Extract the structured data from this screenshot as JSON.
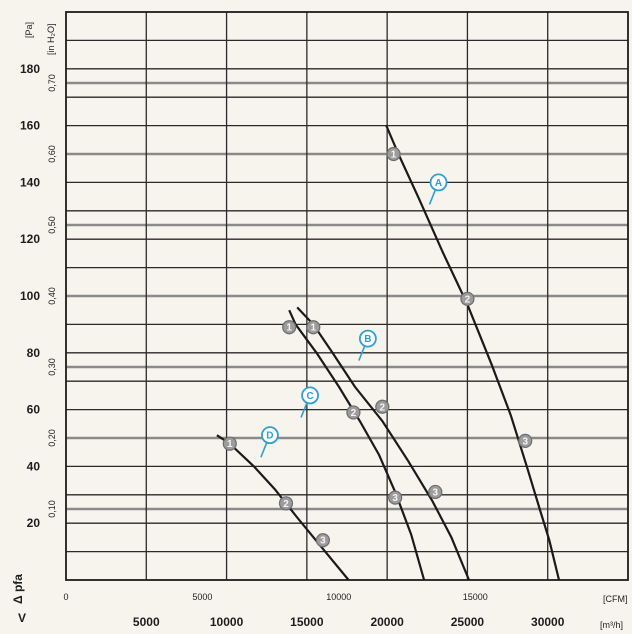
{
  "chart_data": {
    "type": "line",
    "x": {
      "label": "V",
      "unit": "[m³/h]",
      "lim": [
        0,
        35000
      ],
      "ticks": [
        5000,
        10000,
        15000,
        20000,
        25000,
        30000
      ]
    },
    "x_secondary": {
      "unit": "[CFM]",
      "ticks": [
        {
          "label": "0",
          "value": 0
        },
        {
          "label": "5000",
          "value": 5000
        },
        {
          "label": "10000",
          "value": 10000
        },
        {
          "label": "15000",
          "value": 15000
        }
      ]
    },
    "y": {
      "label": "Δ pfa",
      "unit": "[Pa]",
      "lim": [
        0,
        200
      ],
      "ticks": [
        20,
        40,
        60,
        80,
        100,
        120,
        140,
        160,
        180
      ]
    },
    "y_secondary": {
      "unit": "[in H₂O]",
      "ticks": [
        {
          "label": "0,10",
          "value": 25
        },
        {
          "label": "0,20",
          "value": 50
        },
        {
          "label": "0,30",
          "value": 75
        },
        {
          "label": "0,40",
          "value": 100
        },
        {
          "label": "0,50",
          "value": 125
        },
        {
          "label": "0,60",
          "value": 150
        },
        {
          "label": "0,70",
          "value": 175
        }
      ]
    },
    "series": [
      {
        "name": "A",
        "curve": [
          [
            19950,
            160
          ],
          [
            20700,
            150
          ],
          [
            22000,
            134
          ],
          [
            23500,
            115
          ],
          [
            25000,
            97
          ],
          [
            26500,
            76
          ],
          [
            27700,
            58
          ],
          [
            28700,
            40
          ],
          [
            29500,
            25
          ],
          [
            30100,
            14
          ],
          [
            30700,
            0
          ]
        ],
        "points": [
          {
            "label": "1",
            "x": 20400,
            "y": 150
          },
          {
            "label": "2",
            "x": 25000,
            "y": 99
          },
          {
            "label": "3",
            "x": 28600,
            "y": 49
          }
        ],
        "tag": {
          "x": 23200,
          "y": 140
        }
      },
      {
        "name": "B",
        "curve": [
          [
            14400,
            96
          ],
          [
            15400,
            90
          ],
          [
            16600,
            80
          ],
          [
            18000,
            68
          ],
          [
            19700,
            56
          ],
          [
            21300,
            42
          ],
          [
            22800,
            28
          ],
          [
            24000,
            15
          ],
          [
            25100,
            0
          ]
        ],
        "points": [
          {
            "label": "1",
            "x": 15400,
            "y": 89
          },
          {
            "label": "2",
            "x": 19700,
            "y": 61
          },
          {
            "label": "3",
            "x": 23000,
            "y": 31
          }
        ],
        "tag": {
          "x": 18800,
          "y": 85
        }
      },
      {
        "name": "C",
        "curve": [
          [
            13900,
            95
          ],
          [
            14300,
            90
          ],
          [
            15600,
            80
          ],
          [
            17000,
            68
          ],
          [
            18300,
            56
          ],
          [
            19500,
            44
          ],
          [
            20500,
            31
          ],
          [
            21500,
            16
          ],
          [
            22300,
            0
          ]
        ],
        "points": [
          {
            "label": "1",
            "x": 13900,
            "y": 89
          },
          {
            "label": "2",
            "x": 17900,
            "y": 59
          },
          {
            "label": "3",
            "x": 20500,
            "y": 29
          }
        ],
        "tag": {
          "x": 15200,
          "y": 65
        }
      },
      {
        "name": "D",
        "curve": [
          [
            9400,
            51
          ],
          [
            10200,
            48
          ],
          [
            11700,
            40
          ],
          [
            13000,
            32
          ],
          [
            14400,
            22
          ],
          [
            16000,
            11
          ],
          [
            17600,
            0
          ]
        ],
        "points": [
          {
            "label": "1",
            "x": 10200,
            "y": 48
          },
          {
            "label": "2",
            "x": 13700,
            "y": 27
          },
          {
            "label": "3",
            "x": 16000,
            "y": 14
          }
        ],
        "tag": {
          "x": 12700,
          "y": 51
        }
      }
    ]
  }
}
